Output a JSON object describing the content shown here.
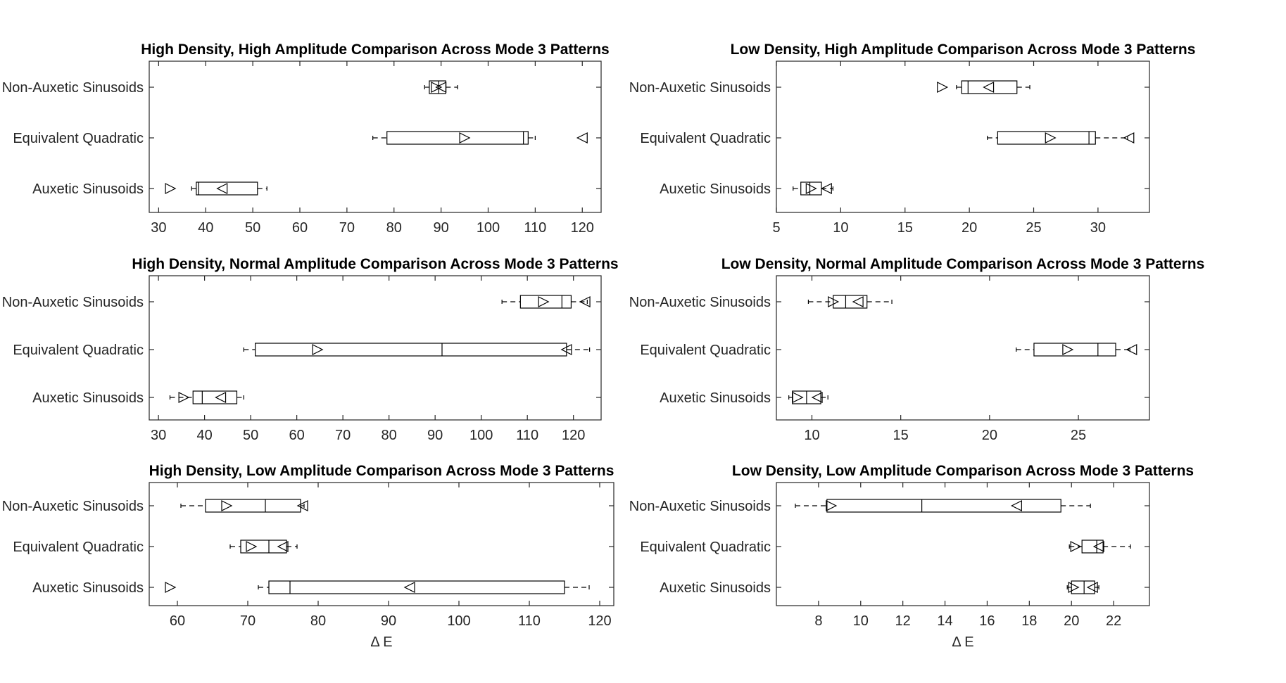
{
  "chart_data": [
    {
      "type": "box",
      "title": "High Density, High Amplitude Comparison Across Mode 3 Patterns",
      "xlabel": "",
      "xlim": [
        28,
        124
      ],
      "xticks": [
        30,
        40,
        50,
        60,
        70,
        80,
        90,
        100,
        110,
        120
      ],
      "categories": [
        "Non-Auxetic Sinusoids",
        "Equivalent Quadratic",
        "Auxetic Sinusoids"
      ],
      "boxes": [
        {
          "category": "Non-Auxetic Sinusoids",
          "whisker_low": 86.5,
          "q1": 87.5,
          "median": 89.5,
          "q3": 91,
          "whisker_high": 93.5,
          "mean_right": 89,
          "mean_left": 90
        },
        {
          "category": "Equivalent Quadratic",
          "whisker_low": 75.5,
          "q1": 78.5,
          "median": 107.5,
          "q3": 108.5,
          "whisker_high": 110,
          "mean_right": 95,
          "mean_left": 120
        },
        {
          "category": "Auxetic Sinusoids",
          "whisker_low": 37,
          "q1": 38,
          "median": 38.5,
          "q3": 51,
          "whisker_high": 53,
          "mean_right": 32.5,
          "mean_left": 43.5
        }
      ]
    },
    {
      "type": "box",
      "title": "Low Density, High Amplitude Comparison Across Mode 3 Patterns",
      "xlabel": "",
      "xlim": [
        5,
        34
      ],
      "xticks": [
        5,
        10,
        15,
        20,
        25,
        30
      ],
      "categories": [
        "Non-Auxetic Sinusoids",
        "Equivalent Quadratic",
        "Auxetic Sinusoids"
      ],
      "boxes": [
        {
          "category": "Non-Auxetic Sinusoids",
          "whisker_low": 19,
          "q1": 19.4,
          "median": 19.9,
          "q3": 23.7,
          "whisker_high": 24.7,
          "mean_right": 17.9,
          "mean_left": 21.5
        },
        {
          "category": "Equivalent Quadratic",
          "whisker_low": 21.4,
          "q1": 22.2,
          "median": 29.3,
          "q3": 29.8,
          "whisker_high": 32.3,
          "mean_right": 26.3,
          "mean_left": 32.4
        },
        {
          "category": "Auxetic Sinusoids",
          "whisker_low": 6.3,
          "q1": 6.9,
          "median": 7.6,
          "q3": 8.5,
          "whisker_high": 9.4,
          "mean_right": 7.7,
          "mean_left": 8.9
        }
      ]
    },
    {
      "type": "box",
      "title": "High Density, Normal Amplitude Comparison Across Mode 3 Patterns",
      "xlabel": "",
      "xlim": [
        28,
        126
      ],
      "xticks": [
        30,
        40,
        50,
        60,
        70,
        80,
        90,
        100,
        110,
        120
      ],
      "categories": [
        "Non-Auxetic Sinusoids",
        "Equivalent Quadratic",
        "Auxetic Sinusoids"
      ],
      "boxes": [
        {
          "category": "Non-Auxetic Sinusoids",
          "whisker_low": 104.5,
          "q1": 108.5,
          "median": 117.5,
          "q3": 119.5,
          "whisker_high": 123,
          "mean_right": 113.5,
          "mean_left": 122.5
        },
        {
          "category": "Equivalent Quadratic",
          "whisker_low": 48.5,
          "q1": 51,
          "median": 91.5,
          "q3": 118.5,
          "whisker_high": 123.5,
          "mean_right": 64.5,
          "mean_left": 118.5
        },
        {
          "category": "Auxetic Sinusoids",
          "whisker_low": 32.5,
          "q1": 37.5,
          "median": 39.5,
          "q3": 47,
          "whisker_high": 48.5,
          "mean_right": 35.5,
          "mean_left": 43.5
        }
      ]
    },
    {
      "type": "box",
      "title": "Low Density, Normal Amplitude Comparison Across Mode 3 Patterns",
      "xlabel": "",
      "xlim": [
        8,
        29
      ],
      "xticks": [
        10,
        15,
        20,
        25
      ],
      "categories": [
        "Non-Auxetic Sinusoids",
        "Equivalent Quadratic",
        "Auxetic Sinusoids"
      ],
      "boxes": [
        {
          "category": "Non-Auxetic Sinusoids",
          "whisker_low": 9.8,
          "q1": 11.2,
          "median": 11.9,
          "q3": 13.1,
          "whisker_high": 14.5,
          "mean_right": 11.2,
          "mean_left": 12.6
        },
        {
          "category": "Equivalent Quadratic",
          "whisker_low": 21.5,
          "q1": 22.5,
          "median": 26.1,
          "q3": 27.1,
          "whisker_high": 27.9,
          "mean_right": 24.4,
          "mean_left": 28.0
        },
        {
          "category": "Auxetic Sinusoids",
          "whisker_low": 8.7,
          "q1": 8.9,
          "median": 9.7,
          "q3": 10.5,
          "whisker_high": 10.9,
          "mean_right": 9.2,
          "mean_left": 10.3
        }
      ]
    },
    {
      "type": "box",
      "title": "High Density, Low Amplitude Comparison Across Mode 3 Patterns",
      "xlabel": "Δ E",
      "xlim": [
        56,
        122
      ],
      "xticks": [
        60,
        70,
        80,
        90,
        100,
        110,
        120
      ],
      "categories": [
        "Non-Auxetic Sinusoids",
        "Equivalent Quadratic",
        "Auxetic Sinusoids"
      ],
      "boxes": [
        {
          "category": "Non-Auxetic Sinusoids",
          "whisker_low": 60.5,
          "q1": 64,
          "median": 72.5,
          "q3": 77.5,
          "whisker_high": 78,
          "mean_right": 67,
          "mean_left": 77.8
        },
        {
          "category": "Equivalent Quadratic",
          "whisker_low": 67.5,
          "q1": 69,
          "median": 73,
          "q3": 75.5,
          "whisker_high": 77,
          "mean_right": 70.5,
          "mean_left": 75
        },
        {
          "category": "Auxetic Sinusoids",
          "whisker_low": 71.5,
          "q1": 73,
          "median": 76,
          "q3": 115,
          "whisker_high": 118.5,
          "mean_right": 59,
          "mean_left": 93
        }
      ]
    },
    {
      "type": "box",
      "title": "Low Density, Low Amplitude Comparison Across Mode 3 Patterns",
      "xlabel": "Δ E",
      "xlim": [
        6,
        23.7
      ],
      "xticks": [
        8,
        10,
        12,
        14,
        16,
        18,
        20,
        22
      ],
      "categories": [
        "Non-Auxetic Sinusoids",
        "Equivalent Quadratic",
        "Auxetic Sinusoids"
      ],
      "boxes": [
        {
          "category": "Non-Auxetic Sinusoids",
          "whisker_low": 6.9,
          "q1": 8.4,
          "median": 12.9,
          "q3": 19.5,
          "whisker_high": 20.9,
          "mean_right": 8.6,
          "mean_left": 17.4
        },
        {
          "category": "Equivalent Quadratic",
          "whisker_low": 19.9,
          "q1": 20.5,
          "median": 21.2,
          "q3": 21.5,
          "whisker_high": 22.8,
          "mean_right": 20.2,
          "mean_left": 21.3
        },
        {
          "category": "Auxetic Sinusoids",
          "whisker_low": 19.8,
          "q1": 20,
          "median": 20.6,
          "q3": 21.1,
          "whisker_high": 21.3,
          "mean_right": 20.1,
          "mean_left": 21.0
        }
      ]
    }
  ]
}
